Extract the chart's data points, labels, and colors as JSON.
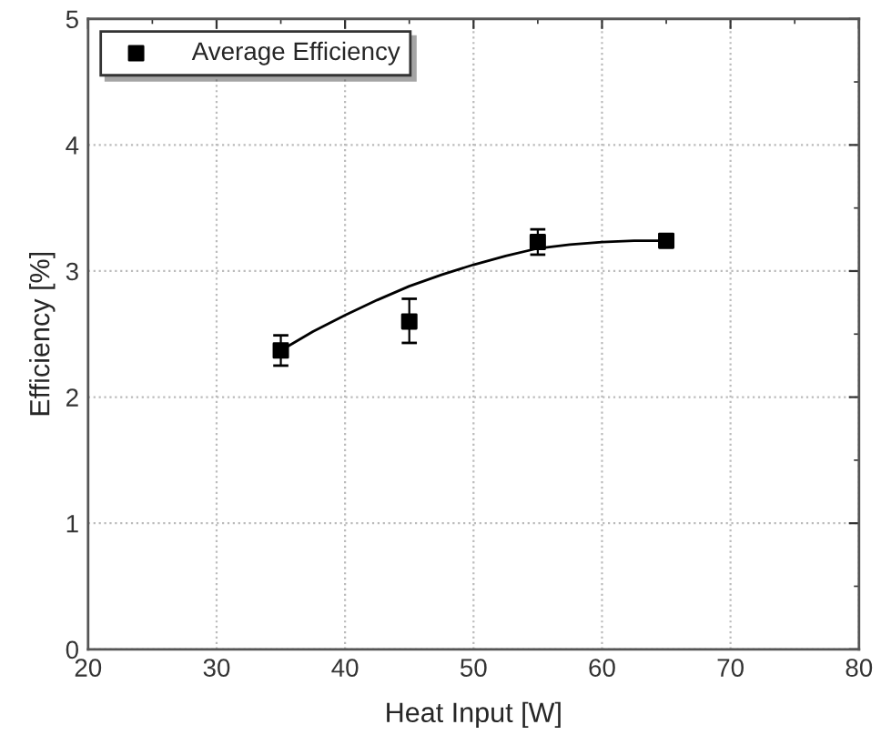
{
  "chart_data": {
    "type": "scatter",
    "xlabel": "Heat Input [W]",
    "ylabel": "Efficiency [%]",
    "xlim": [
      20,
      80
    ],
    "xticks": [
      20,
      30,
      40,
      50,
      60,
      70,
      80
    ],
    "ylim": [
      0,
      5
    ],
    "yticks": [
      0,
      1,
      2,
      3,
      4,
      5
    ],
    "grid": true,
    "legend": "top left",
    "series": [
      {
        "name": "Average Efficiency",
        "marker": "square",
        "color": "#000000",
        "x": [
          35,
          45,
          55,
          65
        ],
        "values": [
          2.37,
          2.6,
          3.23,
          3.24
        ],
        "errors": [
          [
            2.25,
            2.49
          ],
          [
            2.43,
            2.78
          ],
          [
            3.13,
            3.33
          ],
          null
        ]
      },
      {
        "type": "line",
        "color": "#000000",
        "x": [
          35,
          37.5,
          40,
          42.5,
          45,
          47.5,
          50,
          52.5,
          55,
          57.5,
          60,
          62.5,
          65
        ],
        "values": [
          2.37,
          2.52,
          2.65,
          2.77,
          2.88,
          2.97,
          3.05,
          3.12,
          3.18,
          3.21,
          3.23,
          3.24,
          3.24
        ]
      }
    ]
  }
}
